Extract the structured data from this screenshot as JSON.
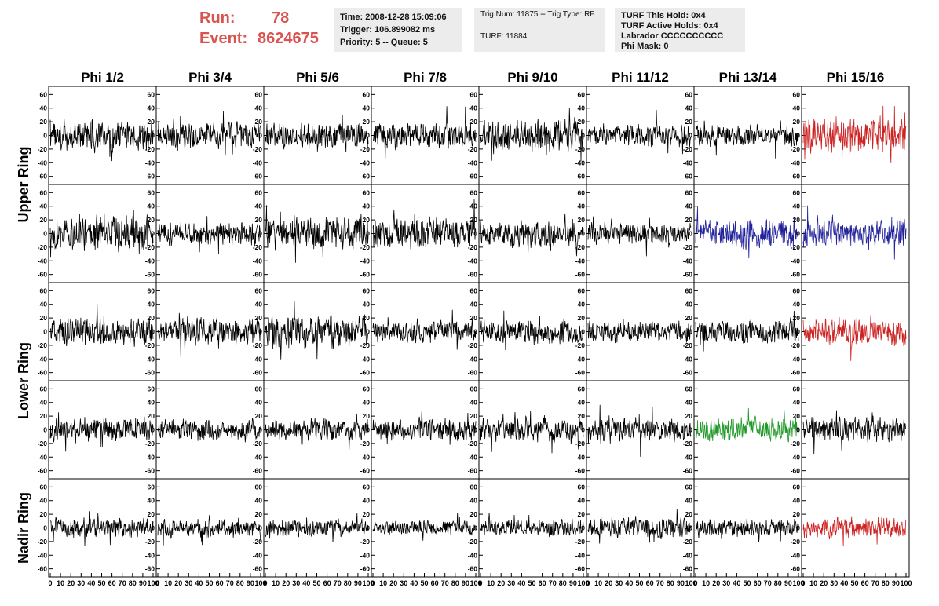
{
  "header": {
    "run_label": "Run:",
    "run_value": "78",
    "event_label": "Event:",
    "event_value": "8624675",
    "time_line": "Time: 2008-12-28 15:09:06",
    "trigger_line": "Trigger: 106.899082 ms",
    "priority_line": "Priority: 5 -- Queue: 5",
    "trig_num_line": "Trig Num: 11875 -- Trig Type: RF",
    "turf_line": "TURF: 11884",
    "turf_hold_line": "TURF This Hold: 0x4",
    "turf_active_line": "TURF Active Holds: 0x4",
    "labrador_line": "Labrador CCCCCCCCCC",
    "phi_mask_line": "Phi Mask: 0"
  },
  "colors": {
    "trace": "#000000",
    "red": "#cc2222",
    "blue": "#22229a",
    "green": "#22992a",
    "header_text": "#d9534f"
  },
  "chart_data": {
    "type": "line",
    "columns": [
      "Phi 1/2",
      "Phi 3/4",
      "Phi 5/6",
      "Phi 7/8",
      "Phi 9/10",
      "Phi 11/12",
      "Phi 13/14",
      "Phi 15/16"
    ],
    "ring_labels": [
      "Upper Ring",
      "Lower Ring",
      "Nadir Ring"
    ],
    "rows": [
      {
        "id": "upper-1",
        "colors": [
          "black",
          "black",
          "black",
          "black",
          "black",
          "black",
          "black",
          "red"
        ]
      },
      {
        "id": "upper-2",
        "colors": [
          "black",
          "black",
          "black",
          "black",
          "black",
          "black",
          "blue",
          "blue"
        ]
      },
      {
        "id": "lower-1",
        "colors": [
          "black",
          "black",
          "black",
          "black",
          "black",
          "black",
          "black",
          "red"
        ]
      },
      {
        "id": "lower-2",
        "colors": [
          "black",
          "black",
          "black",
          "black",
          "black",
          "black",
          "green",
          "black"
        ]
      },
      {
        "id": "nadir",
        "colors": [
          "black",
          "black",
          "black",
          "black",
          "black",
          "black",
          "black",
          "red"
        ]
      }
    ],
    "y_ticks": [
      "60",
      "40",
      "20",
      "0",
      "-20",
      "-40",
      "-60"
    ],
    "y_tick_values": [
      60,
      40,
      20,
      0,
      -20,
      -40,
      -60
    ],
    "ylim": [
      -65,
      65
    ],
    "xlim": [
      0,
      100
    ],
    "x_ticks": [
      "0",
      "10",
      "20",
      "30",
      "40",
      "50",
      "60",
      "70",
      "80",
      "90",
      "100"
    ],
    "x_tick_values": [
      0,
      10,
      20,
      30,
      40,
      50,
      60,
      70,
      80,
      90,
      100
    ],
    "n_samples": 260,
    "amplitudes": [
      [
        18,
        15,
        14,
        15,
        20,
        13,
        12,
        22
      ],
      [
        22,
        14,
        18,
        18,
        15,
        12,
        18,
        16
      ],
      [
        16,
        15,
        20,
        13,
        14,
        12,
        14,
        16
      ],
      [
        14,
        12,
        12,
        13,
        13,
        13,
        13,
        15
      ],
      [
        11,
        10,
        10,
        8,
        9,
        12,
        10,
        12
      ]
    ],
    "seeds": [
      [
        11,
        12,
        13,
        14,
        15,
        16,
        17,
        18
      ],
      [
        21,
        22,
        23,
        24,
        25,
        26,
        27,
        28
      ],
      [
        31,
        32,
        33,
        34,
        35,
        36,
        37,
        38
      ],
      [
        41,
        42,
        43,
        44,
        45,
        46,
        47,
        48
      ],
      [
        51,
        52,
        53,
        54,
        55,
        56,
        57,
        58
      ]
    ]
  }
}
